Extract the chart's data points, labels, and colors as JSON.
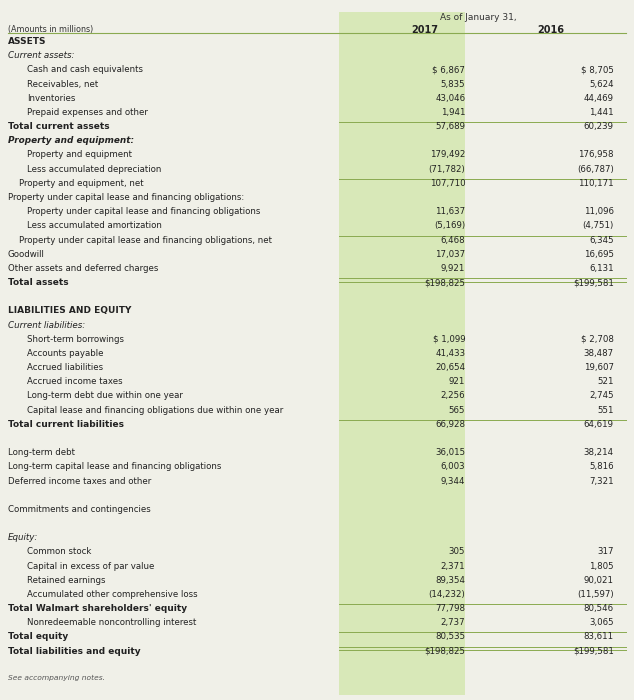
{
  "title_header": "As of January 31,",
  "col_header_label": "(Amounts in millions)",
  "col_2017": "2017",
  "col_2016": "2016",
  "background_color": "#f0f0e8",
  "col_highlight_bg": "#d8e8b8",
  "line_color": "#8aaa50",
  "text_color": "#222222",
  "rows": [
    {
      "label": "ASSETS",
      "val2017": "",
      "val2016": "",
      "style": "bold",
      "indent": 0,
      "separator": false,
      "double_border": false
    },
    {
      "label": "Current assets:",
      "val2017": "",
      "val2016": "",
      "style": "italic",
      "indent": 0,
      "separator": false,
      "double_border": false
    },
    {
      "label": "Cash and cash equivalents",
      "val2017": "$ 6,867",
      "val2016": "$ 8,705",
      "style": "normal",
      "indent": 1,
      "separator": false,
      "double_border": false
    },
    {
      "label": "Receivables, net",
      "val2017": "5,835",
      "val2016": "5,624",
      "style": "normal",
      "indent": 1,
      "separator": false,
      "double_border": false
    },
    {
      "label": "Inventories",
      "val2017": "43,046",
      "val2016": "44,469",
      "style": "normal",
      "indent": 1,
      "separator": false,
      "double_border": false
    },
    {
      "label": "Prepaid expenses and other",
      "val2017": "1,941",
      "val2016": "1,441",
      "style": "normal",
      "indent": 1,
      "separator": false,
      "double_border": false
    },
    {
      "label": "Total current assets",
      "val2017": "57,689",
      "val2016": "60,239",
      "style": "bold",
      "indent": 0,
      "separator": true,
      "double_border": false
    },
    {
      "label": "Property and equipment:",
      "val2017": "",
      "val2016": "",
      "style": "bold_italic",
      "indent": 0,
      "separator": false,
      "double_border": false
    },
    {
      "label": "Property and equipment",
      "val2017": "179,492",
      "val2016": "176,958",
      "style": "normal",
      "indent": 1,
      "separator": false,
      "double_border": false
    },
    {
      "label": "Less accumulated depreciation",
      "val2017": "(71,782)",
      "val2016": "(66,787)",
      "style": "normal",
      "indent": 1,
      "separator": false,
      "double_border": false
    },
    {
      "label": "    Property and equipment, net",
      "val2017": "107,710",
      "val2016": "110,171",
      "style": "normal",
      "indent": 0,
      "separator": true,
      "double_border": false
    },
    {
      "label": "Property under capital lease and financing obligations:",
      "val2017": "",
      "val2016": "",
      "style": "normal",
      "indent": 0,
      "separator": false,
      "double_border": false
    },
    {
      "label": "Property under capital lease and financing obligations",
      "val2017": "11,637",
      "val2016": "11,096",
      "style": "normal",
      "indent": 1,
      "separator": false,
      "double_border": false
    },
    {
      "label": "Less accumulated amortization",
      "val2017": "(5,169)",
      "val2016": "(4,751)",
      "style": "normal",
      "indent": 1,
      "separator": false,
      "double_border": false
    },
    {
      "label": "    Property under capital lease and financing obligations, net",
      "val2017": "6,468",
      "val2016": "6,345",
      "style": "normal",
      "indent": 0,
      "separator": true,
      "double_border": false
    },
    {
      "label": "Goodwill",
      "val2017": "17,037",
      "val2016": "16,695",
      "style": "normal",
      "indent": 0,
      "separator": false,
      "double_border": false
    },
    {
      "label": "Other assets and deferred charges",
      "val2017": "9,921",
      "val2016": "6,131",
      "style": "normal",
      "indent": 0,
      "separator": false,
      "double_border": false
    },
    {
      "label": "Total assets",
      "val2017": "$198,825",
      "val2016": "$199,581",
      "style": "bold",
      "indent": 0,
      "separator": true,
      "double_border": true
    },
    {
      "label": "",
      "val2017": "",
      "val2016": "",
      "style": "normal",
      "indent": 0,
      "separator": false,
      "double_border": false
    },
    {
      "label": "LIABILITIES AND EQUITY",
      "val2017": "",
      "val2016": "",
      "style": "bold",
      "indent": 0,
      "separator": false,
      "double_border": false
    },
    {
      "label": "Current liabilities:",
      "val2017": "",
      "val2016": "",
      "style": "italic",
      "indent": 0,
      "separator": false,
      "double_border": false
    },
    {
      "label": "Short-term borrowings",
      "val2017": "$ 1,099",
      "val2016": "$ 2,708",
      "style": "normal",
      "indent": 1,
      "separator": false,
      "double_border": false
    },
    {
      "label": "Accounts payable",
      "val2017": "41,433",
      "val2016": "38,487",
      "style": "normal",
      "indent": 1,
      "separator": false,
      "double_border": false
    },
    {
      "label": "Accrued liabilities",
      "val2017": "20,654",
      "val2016": "19,607",
      "style": "normal",
      "indent": 1,
      "separator": false,
      "double_border": false
    },
    {
      "label": "Accrued income taxes",
      "val2017": "921",
      "val2016": "521",
      "style": "normal",
      "indent": 1,
      "separator": false,
      "double_border": false
    },
    {
      "label": "Long-term debt due within one year",
      "val2017": "2,256",
      "val2016": "2,745",
      "style": "normal",
      "indent": 1,
      "separator": false,
      "double_border": false
    },
    {
      "label": "Capital lease and financing obligations due within one year",
      "val2017": "565",
      "val2016": "551",
      "style": "normal",
      "indent": 1,
      "separator": false,
      "double_border": false
    },
    {
      "label": "Total current liabilities",
      "val2017": "66,928",
      "val2016": "64,619",
      "style": "bold",
      "indent": 0,
      "separator": true,
      "double_border": false
    },
    {
      "label": "",
      "val2017": "",
      "val2016": "",
      "style": "normal",
      "indent": 0,
      "separator": false,
      "double_border": false
    },
    {
      "label": "Long-term debt",
      "val2017": "36,015",
      "val2016": "38,214",
      "style": "normal",
      "indent": 0,
      "separator": false,
      "double_border": false
    },
    {
      "label": "Long-term capital lease and financing obligations",
      "val2017": "6,003",
      "val2016": "5,816",
      "style": "normal",
      "indent": 0,
      "separator": false,
      "double_border": false
    },
    {
      "label": "Deferred income taxes and other",
      "val2017": "9,344",
      "val2016": "7,321",
      "style": "normal",
      "indent": 0,
      "separator": false,
      "double_border": false
    },
    {
      "label": "",
      "val2017": "",
      "val2016": "",
      "style": "normal",
      "indent": 0,
      "separator": false,
      "double_border": false
    },
    {
      "label": "Commitments and contingencies",
      "val2017": "",
      "val2016": "",
      "style": "normal",
      "indent": 0,
      "separator": false,
      "double_border": false
    },
    {
      "label": "",
      "val2017": "",
      "val2016": "",
      "style": "normal",
      "indent": 0,
      "separator": false,
      "double_border": false
    },
    {
      "label": "Equity:",
      "val2017": "",
      "val2016": "",
      "style": "italic",
      "indent": 0,
      "separator": false,
      "double_border": false
    },
    {
      "label": "Common stock",
      "val2017": "305",
      "val2016": "317",
      "style": "normal",
      "indent": 1,
      "separator": false,
      "double_border": false
    },
    {
      "label": "Capital in excess of par value",
      "val2017": "2,371",
      "val2016": "1,805",
      "style": "normal",
      "indent": 1,
      "separator": false,
      "double_border": false
    },
    {
      "label": "Retained earnings",
      "val2017": "89,354",
      "val2016": "90,021",
      "style": "normal",
      "indent": 1,
      "separator": false,
      "double_border": false
    },
    {
      "label": "Accumulated other comprehensive loss",
      "val2017": "(14,232)",
      "val2016": "(11,597)",
      "style": "normal",
      "indent": 1,
      "separator": false,
      "double_border": false
    },
    {
      "label": "Total Walmart shareholders' equity",
      "val2017": "77,798",
      "val2016": "80,546",
      "style": "bold",
      "indent": 0,
      "separator": true,
      "double_border": false
    },
    {
      "label": "Nonredeemable noncontrolling interest",
      "val2017": "2,737",
      "val2016": "3,065",
      "style": "normal",
      "indent": 1,
      "separator": false,
      "double_border": false
    },
    {
      "label": "Total equity",
      "val2017": "80,535",
      "val2016": "83,611",
      "style": "bold",
      "indent": 0,
      "separator": true,
      "double_border": false
    },
    {
      "label": "Total liabilities and equity",
      "val2017": "$198,825",
      "val2016": "$199,581",
      "style": "bold",
      "indent": 0,
      "separator": true,
      "double_border": true
    },
    {
      "label": "",
      "val2017": "",
      "val2016": "",
      "style": "normal",
      "indent": 0,
      "separator": false,
      "double_border": false
    },
    {
      "label": "See accompanying notes.",
      "val2017": "",
      "val2016": "",
      "style": "small_italic",
      "indent": 0,
      "separator": false,
      "double_border": false
    }
  ]
}
